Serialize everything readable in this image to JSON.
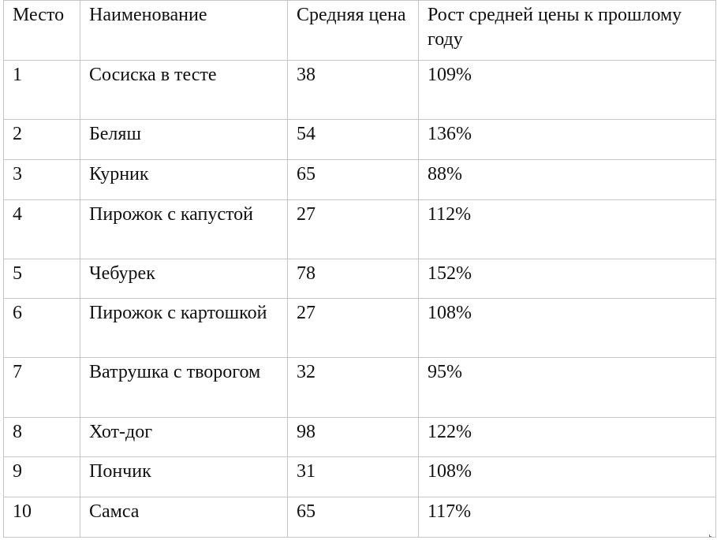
{
  "table": {
    "headers": [
      "Место",
      "Наименование",
      "Средняя цена",
      "Рост средней цены к прошлому году"
    ],
    "rows": [
      {
        "place": "1",
        "name": "Сосиска в тесте",
        "price": "38",
        "growth": "109%"
      },
      {
        "place": "2",
        "name": "Беляш",
        "price": "54",
        "growth": "136%"
      },
      {
        "place": "3",
        "name": "Курник",
        "price": "65",
        "growth": "88%"
      },
      {
        "place": "4",
        "name": "Пирожок с капустой",
        "price": "27",
        "growth": "112%"
      },
      {
        "place": "5",
        "name": "Чебурек",
        "price": "78",
        "growth": "152%"
      },
      {
        "place": "6",
        "name": "Пирожок с картошкой",
        "price": "27",
        "growth": "108%"
      },
      {
        "place": "7",
        "name": "Ватрушка с творогом",
        "price": "32",
        "growth": "95%"
      },
      {
        "place": "8",
        "name": "Хот-дог",
        "price": "98",
        "growth": "122%"
      },
      {
        "place": "9",
        "name": "Пончик",
        "price": "31",
        "growth": "108%"
      },
      {
        "place": "10",
        "name": "Самса",
        "price": "65",
        "growth": "117%"
      }
    ]
  }
}
